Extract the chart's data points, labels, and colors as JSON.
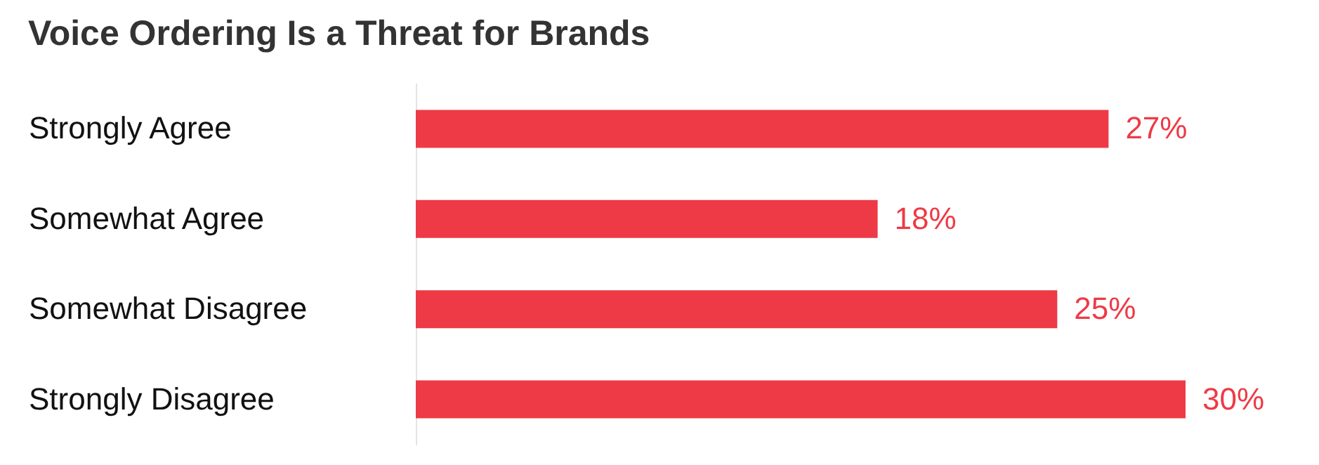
{
  "chart_data": {
    "type": "bar",
    "orientation": "horizontal",
    "title": "Voice Ordering Is a Threat for Brands",
    "categories": [
      "Strongly Agree",
      "Somewhat Agree",
      "Somewhat Disagree",
      "Strongly Disagree"
    ],
    "values": [
      27,
      18,
      25,
      30
    ],
    "value_labels": [
      "27%",
      "18%",
      "25%",
      "30%"
    ],
    "color": "#ee3a46",
    "grid": false
  }
}
